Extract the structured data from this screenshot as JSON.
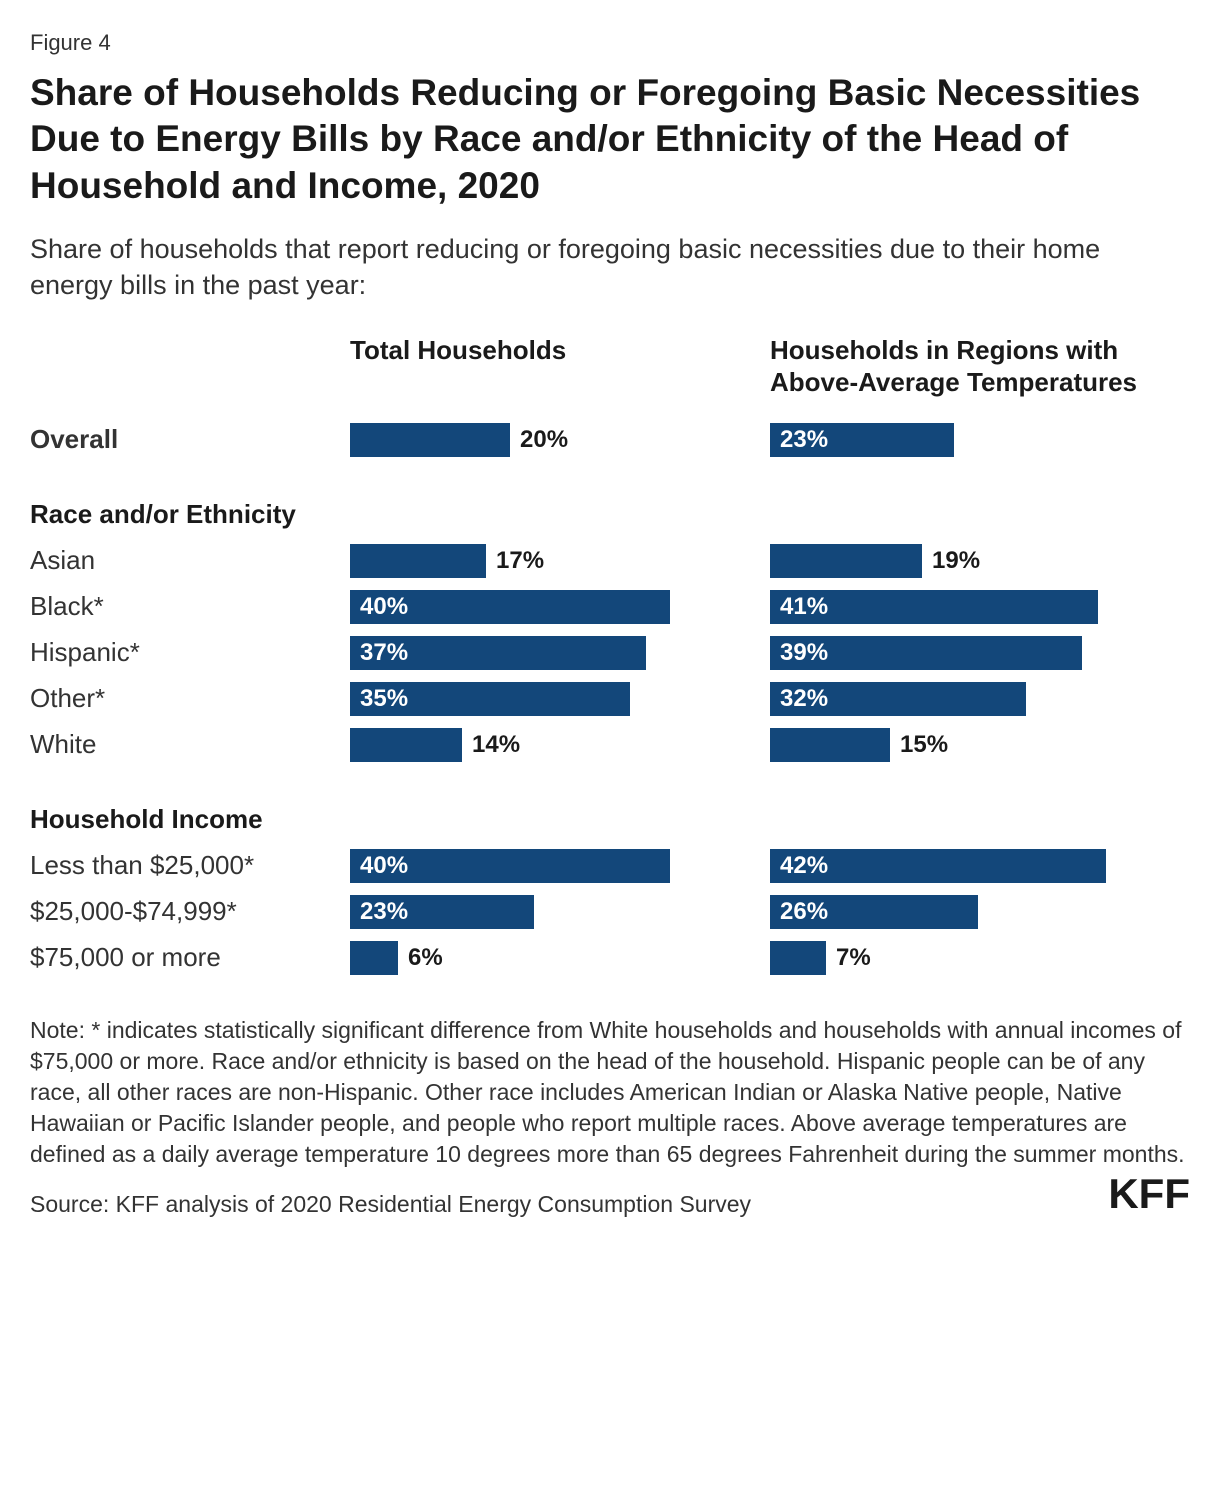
{
  "figure_num": "Figure 4",
  "title": "Share of Households Reducing or Foregoing Basic Necessities Due to Energy Bills by Race and/or Ethnicity of the Head of Household and Income, 2020",
  "subtitle": "Share of households that report reducing or foregoing basic necessities due to their home energy bills in the past year:",
  "columns": {
    "col1": "Total Households",
    "col2": "Households in Regions with Above-Average Temperatures"
  },
  "max_value": 50,
  "bar_color": "#13477a",
  "text_color_inside": "#ffffff",
  "text_color_outside": "#1a1a1a",
  "label_inside_threshold": 22,
  "groups": [
    {
      "header": null,
      "rows": [
        {
          "label": "Overall",
          "bold": true,
          "v1": 20,
          "v2": 23
        }
      ]
    },
    {
      "header": "Race and/or Ethnicity",
      "rows": [
        {
          "label": "Asian",
          "bold": false,
          "v1": 17,
          "v2": 19
        },
        {
          "label": "Black*",
          "bold": false,
          "v1": 40,
          "v2": 41
        },
        {
          "label": "Hispanic*",
          "bold": false,
          "v1": 37,
          "v2": 39
        },
        {
          "label": "Other*",
          "bold": false,
          "v1": 35,
          "v2": 32
        },
        {
          "label": "White",
          "bold": false,
          "v1": 14,
          "v2": 15
        }
      ]
    },
    {
      "header": "Household Income",
      "rows": [
        {
          "label": "Less than $25,000*",
          "bold": false,
          "v1": 40,
          "v2": 42
        },
        {
          "label": "$25,000-$74,999*",
          "bold": false,
          "v1": 23,
          "v2": 26
        },
        {
          "label": "$75,000 or more",
          "bold": false,
          "v1": 6,
          "v2": 7
        }
      ]
    }
  ],
  "note": "Note: * indicates statistically significant difference from White households and households with annual incomes of $75,000 or more. Race and/or ethnicity is based on the head of the household. Hispanic people can be of any race, all other races are non-Hispanic. Other race includes American Indian or Alaska Native people, Native Hawaiian or Pacific Islander people, and people who report multiple races. Above average temperatures are defined as a daily average temperature 10 degrees more than 65 degrees Fahrenheit during the summer months.",
  "source": "Source: KFF analysis of 2020 Residential Energy Consumption Survey",
  "logo": "KFF"
}
